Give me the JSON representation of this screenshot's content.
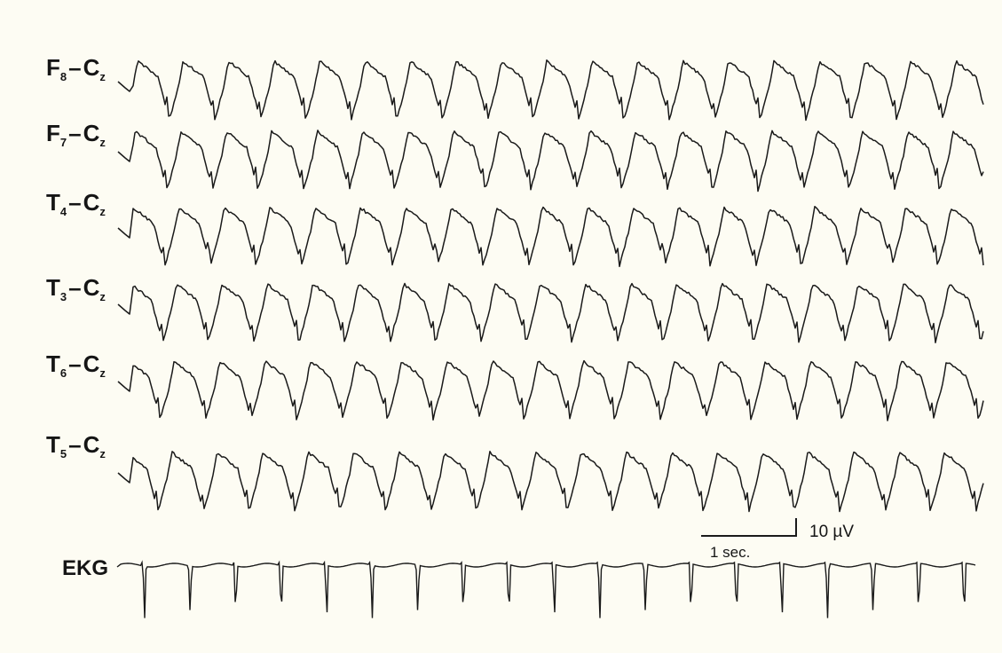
{
  "channels": [
    {
      "electrode": "F",
      "electrode_sub": "8",
      "reference": "C",
      "reference_sub": "z"
    },
    {
      "electrode": "F",
      "electrode_sub": "7",
      "reference": "C",
      "reference_sub": "z"
    },
    {
      "electrode": "T",
      "electrode_sub": "4",
      "reference": "C",
      "reference_sub": "z"
    },
    {
      "electrode": "T",
      "electrode_sub": "3",
      "reference": "C",
      "reference_sub": "z"
    },
    {
      "electrode": "T",
      "electrode_sub": "6",
      "reference": "C",
      "reference_sub": "z"
    },
    {
      "electrode": "T",
      "electrode_sub": "5",
      "reference": "C",
      "reference_sub": "z"
    }
  ],
  "ekg_label": "EKG",
  "scale_bar": {
    "time_label": "1 sec.",
    "amplitude_label": "10 µV"
  },
  "trace_color": "#1a1a1a",
  "background_color": "#fdfcf3"
}
